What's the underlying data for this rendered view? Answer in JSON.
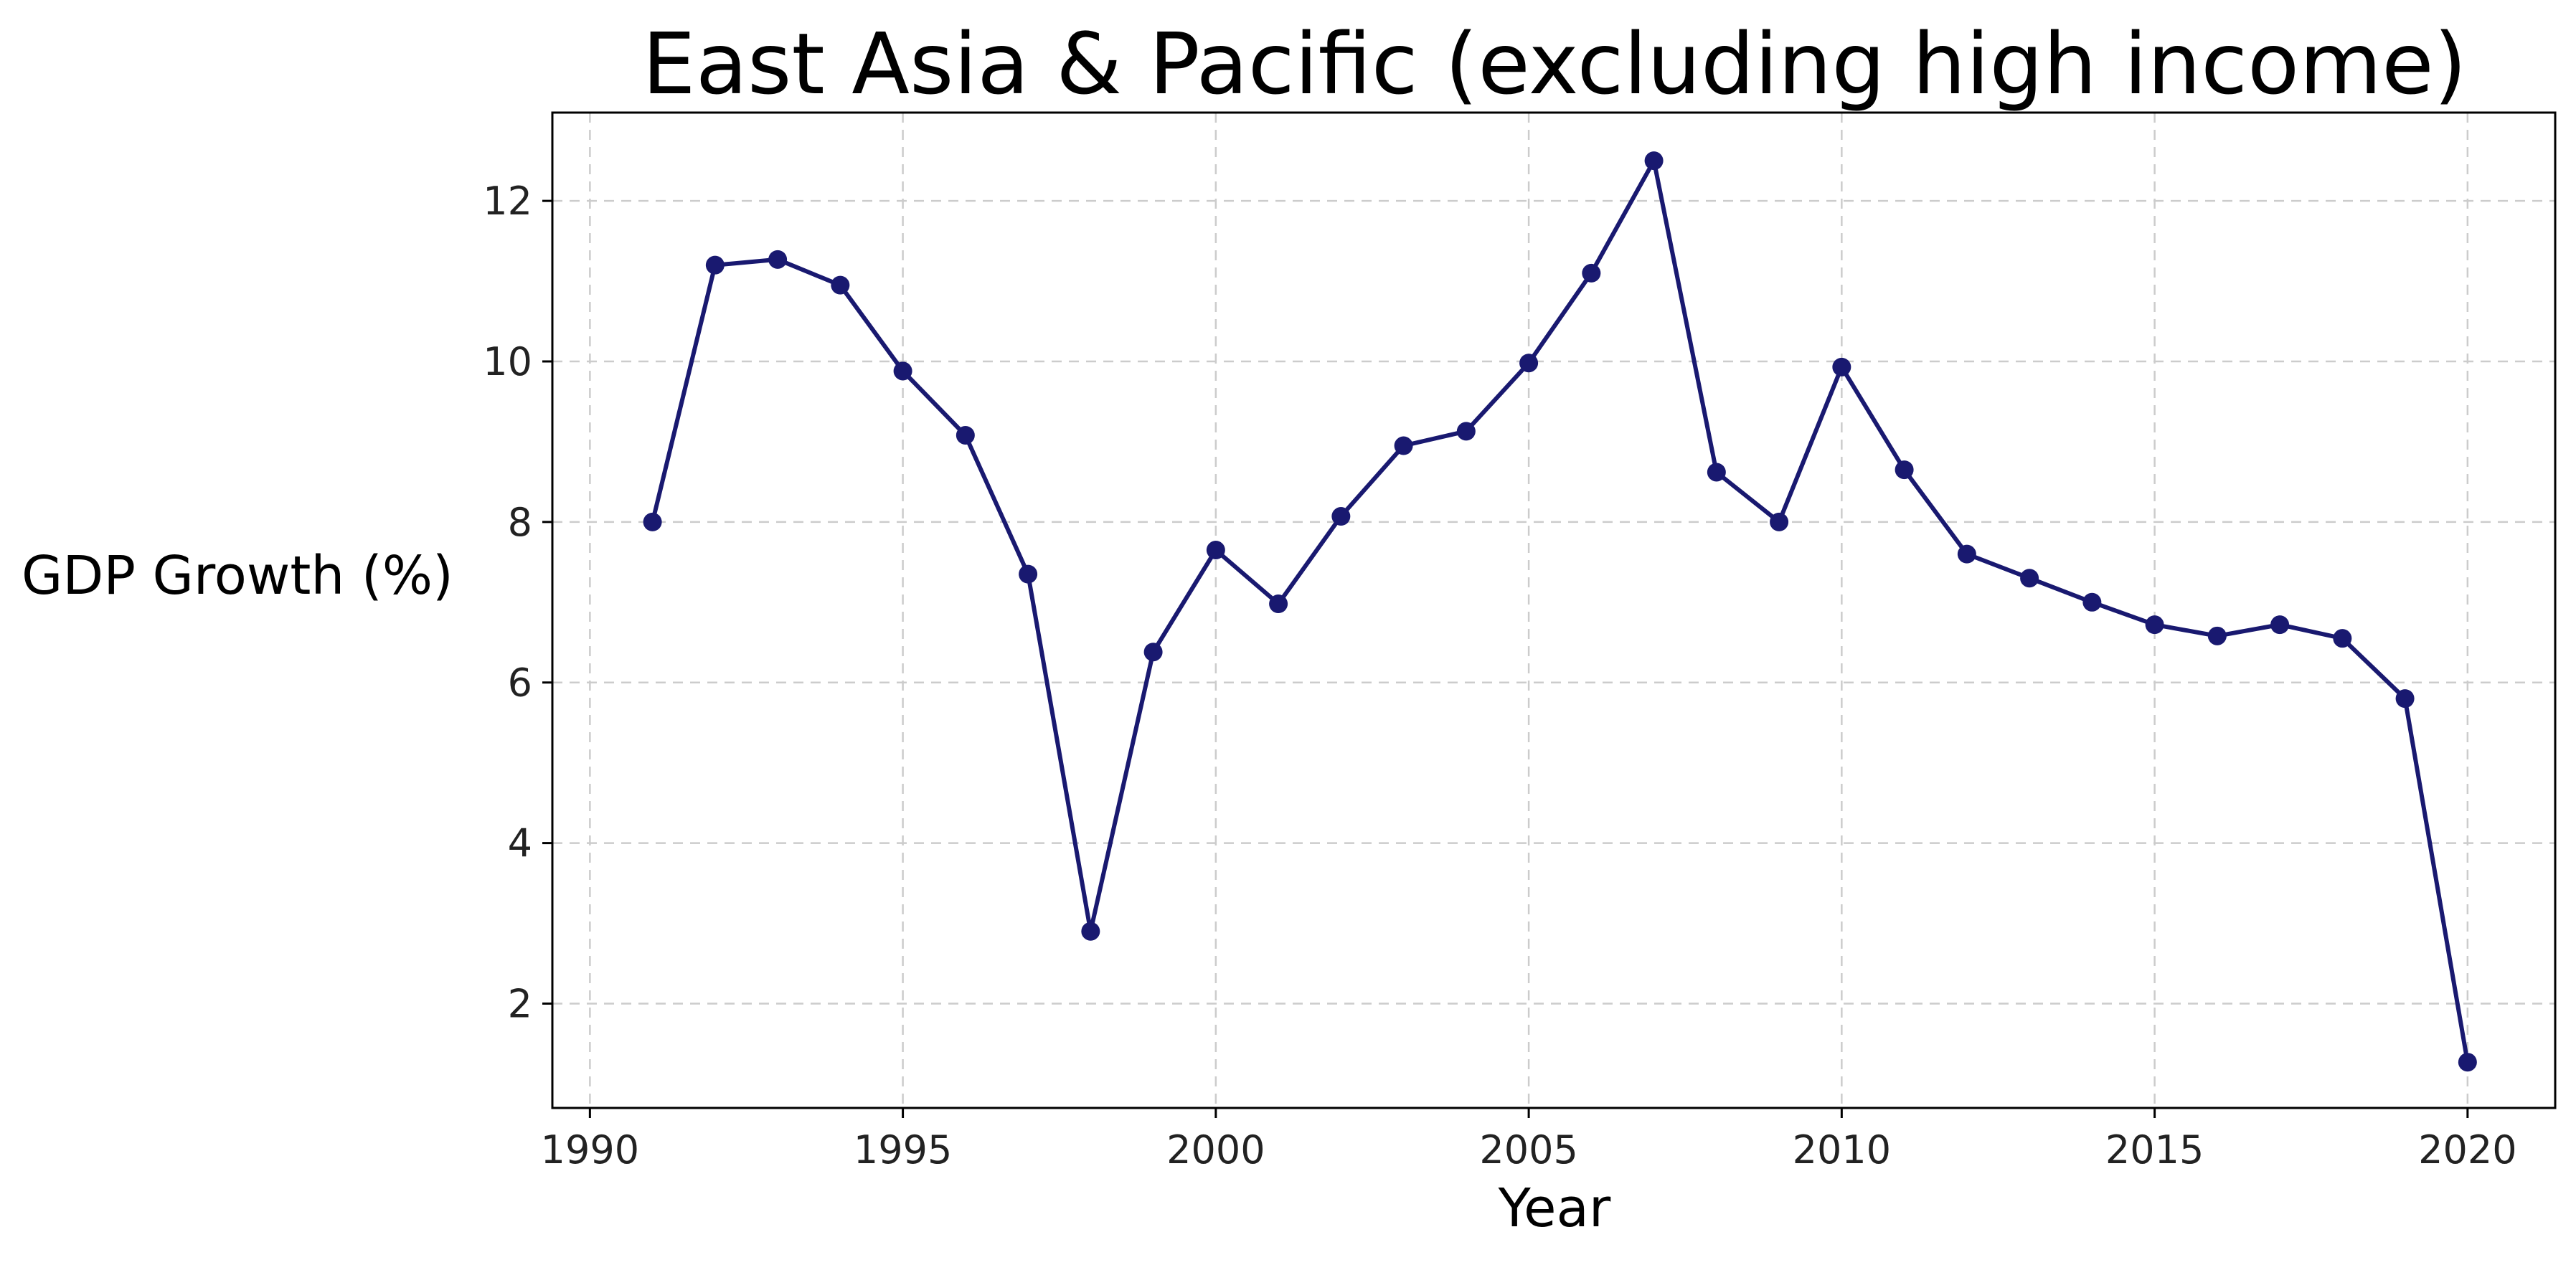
{
  "chart_data": {
    "type": "line",
    "title": "East Asia & Pacific (excluding high income)",
    "xlabel": "Year",
    "ylabel": "GDP Growth (%)",
    "xlim": [
      1989.4,
      2021.4
    ],
    "ylim": [
      0.7,
      13.1
    ],
    "xticks": [
      1990,
      1995,
      2000,
      2005,
      2010,
      2015,
      2020
    ],
    "yticks": [
      2,
      4,
      6,
      8,
      10,
      12
    ],
    "grid": true,
    "color": "#191970",
    "series": [
      {
        "x": [
          1991,
          1992,
          1993,
          1994,
          1995,
          1996,
          1997,
          1998,
          1999,
          2000,
          2001,
          2002,
          2003,
          2004,
          2005,
          2006,
          2007,
          2008,
          2009,
          2010,
          2011,
          2012,
          2013,
          2014,
          2015,
          2016,
          2017,
          2018,
          2019,
          2020
        ],
        "y": [
          8.0,
          11.2,
          11.27,
          10.95,
          9.88,
          9.08,
          7.35,
          2.9,
          6.38,
          7.65,
          6.98,
          8.07,
          8.95,
          9.13,
          9.98,
          11.1,
          12.5,
          8.62,
          8.0,
          9.93,
          8.65,
          7.6,
          7.3,
          7.0,
          6.72,
          6.58,
          6.72,
          6.55,
          5.8,
          1.27
        ]
      }
    ]
  }
}
